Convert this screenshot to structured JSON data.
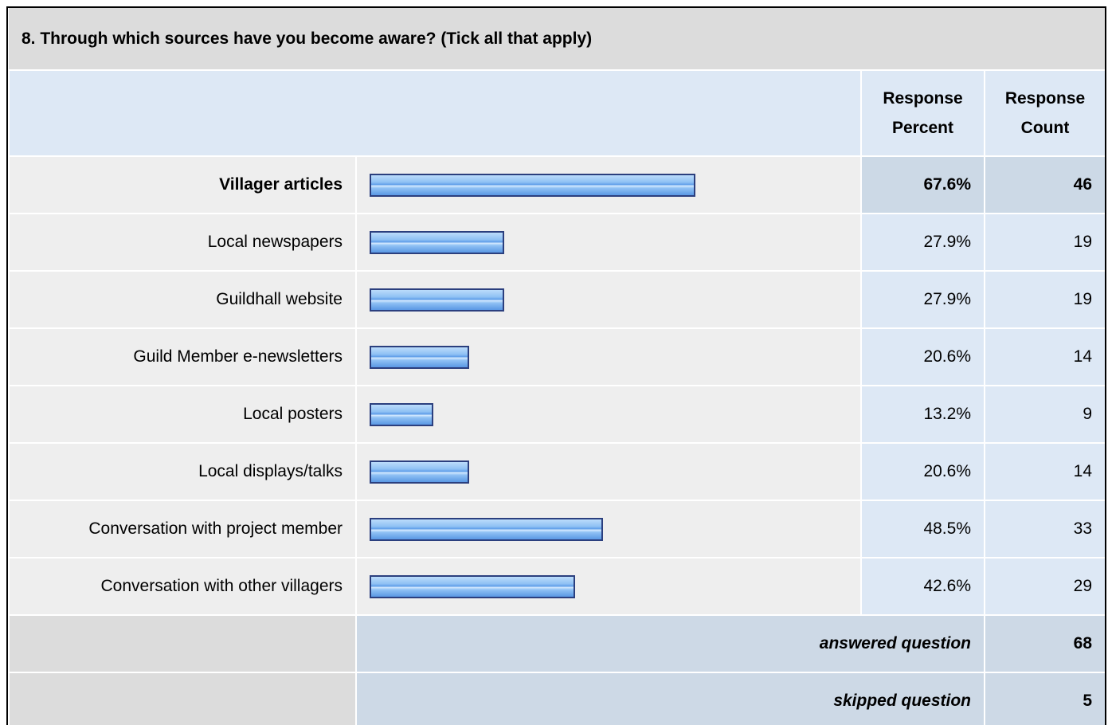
{
  "question": "8. Through which sources have you become aware? (Tick all that apply)",
  "columns": [
    "Response Percent",
    "Response Count"
  ],
  "rows": [
    {
      "label": "Villager articles",
      "percent": 67.6,
      "percent_label": "67.6%",
      "count": 46
    },
    {
      "label": "Local newspapers",
      "percent": 27.9,
      "percent_label": "27.9%",
      "count": 19
    },
    {
      "label": "Guildhall website",
      "percent": 27.9,
      "percent_label": "27.9%",
      "count": 19
    },
    {
      "label": "Guild Member e-newsletters",
      "percent": 20.6,
      "percent_label": "20.6%",
      "count": 14
    },
    {
      "label": "Local posters",
      "percent": 13.2,
      "percent_label": "13.2%",
      "count": 9
    },
    {
      "label": "Local displays/talks",
      "percent": 20.6,
      "percent_label": "20.6%",
      "count": 14
    },
    {
      "label": "Conversation with project member",
      "percent": 48.5,
      "percent_label": "48.5%",
      "count": 33
    },
    {
      "label": "Conversation with other villagers",
      "percent": 42.6,
      "percent_label": "42.6%",
      "count": 29
    }
  ],
  "footer": [
    {
      "label": "answered question",
      "value": 68
    },
    {
      "label": "skipped question",
      "value": 5
    }
  ]
}
